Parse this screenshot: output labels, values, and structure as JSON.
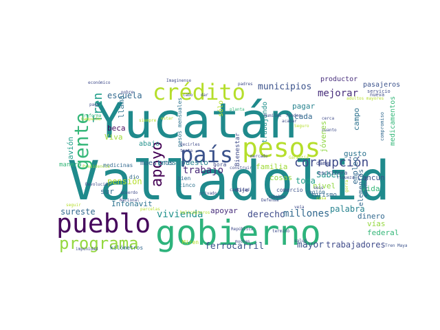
{
  "cloud": {
    "words": [
      {
        "text": "Valladolid",
        "color": "#1f8a8c"
      },
      {
        "text": "Yucatán",
        "color": "#1f8a8c"
      },
      {
        "text": "gobierno",
        "color": "#2eb37c"
      },
      {
        "text": "pueblo",
        "color": "#46085c"
      },
      {
        "text": "pesos",
        "color": "#b5de2b"
      },
      {
        "text": "crédito",
        "color": "#b5de2b"
      },
      {
        "text": "país",
        "color": "#3b528b"
      },
      {
        "text": "gente",
        "color": "#35b779"
      },
      {
        "text": "programa",
        "color": "#95d840"
      },
      {
        "text": "apoyo",
        "color": "#440154"
      },
      {
        "text": "Tren",
        "color": "#1f9e89"
      },
      {
        "text": "corrupción",
        "color": "#3e4a89"
      },
      {
        "text": "mejorar",
        "color": "#472d7b"
      },
      {
        "text": "municipios",
        "color": "#3b528b"
      },
      {
        "text": "escuela",
        "color": "#31688e"
      },
      {
        "text": "pensión",
        "color": "#b5de2b"
      },
      {
        "text": "trabajo",
        "color": "#482878"
      },
      {
        "text": "presupuesto",
        "color": "#26828e"
      },
      {
        "text": "maestros",
        "color": "#31688e"
      },
      {
        "text": "Infonavit",
        "color": "#2c728e"
      },
      {
        "text": "vivienda",
        "color": "#21918c"
      },
      {
        "text": "sureste",
        "color": "#31688e"
      },
      {
        "text": "apoyar",
        "color": "#472d7b"
      },
      {
        "text": "derecho",
        "color": "#3e4a89"
      },
      {
        "text": "millones",
        "color": "#31688e"
      },
      {
        "text": "palabra",
        "color": "#26828e"
      },
      {
        "text": "mayor",
        "color": "#3b528b"
      },
      {
        "text": "trabajadores",
        "color": "#3e4a89"
      },
      {
        "text": "ferrocarril",
        "color": "#3b528b"
      },
      {
        "text": "avión",
        "color": "#1f9e89"
      },
      {
        "text": "beca",
        "color": "#46085c"
      },
      {
        "text": "sur",
        "color": "#31688e"
      },
      {
        "text": "familia",
        "color": "#a0da39"
      },
      {
        "text": "cosas",
        "color": "#90d743"
      },
      {
        "text": "toda",
        "color": "#1f9e89"
      },
      {
        "text": "Saben",
        "color": "#21918c"
      },
      {
        "text": "nivel",
        "color": "#90d743"
      },
      {
        "text": "Cancún",
        "color": "#3b528b"
      },
      {
        "text": "vida",
        "color": "#35b779"
      },
      {
        "text": "empleo",
        "color": "#31688e"
      },
      {
        "text": "gusto",
        "color": "#2c728e"
      },
      {
        "text": "pagar",
        "color": "#26828e"
      },
      {
        "text": "cada",
        "color": "#31688e"
      },
      {
        "text": "jóvenes",
        "color": "#90d743"
      },
      {
        "text": "campo",
        "color": "#2c728e"
      },
      {
        "text": "medicamentos",
        "color": "#35b779"
      },
      {
        "text": "elementos",
        "color": "#31688e"
      },
      {
        "text": "vías",
        "color": "#95d840"
      },
      {
        "text": "federal",
        "color": "#35b779"
      },
      {
        "text": "dinero",
        "color": "#31688e"
      },
      {
        "text": "pasajeros",
        "color": "#3b528b"
      },
      {
        "text": "productor",
        "color": "#472d7b"
      },
      {
        "text": "trabajando",
        "color": "#21918c"
      },
      {
        "text": "Bienestar",
        "color": "#3e4a89"
      },
      {
        "text": "sólo",
        "color": "#b5de2b"
      },
      {
        "text": "llama",
        "color": "#2c728e"
      },
      {
        "text": "Viva",
        "color": "#a0da39"
      },
      {
        "text": "abajo",
        "color": "#21918c"
      },
      {
        "text": "pesos mensuales",
        "color": "#2c728e"
      },
      {
        "text": "medicinas",
        "color": "#31688e"
      },
      {
        "text": "manera",
        "color": "#35b779"
      },
      {
        "text": "dio",
        "color": "#31688e"
      },
      {
        "text": "bien",
        "color": "#31688e"
      },
      {
        "text": "cinco",
        "color": "#2c728e"
      },
      {
        "text": "dije",
        "color": "#3e4a89"
      },
      {
        "text": "hora",
        "color": "#3e4a89"
      },
      {
        "text": "turismo",
        "color": "#31688e"
      },
      {
        "text": "dame",
        "color": "#3e4a89"
      },
      {
        "text": "escritura",
        "color": "#3e4a89"
      },
      {
        "text": "comercio",
        "color": "#3b528b"
      },
      {
        "text": "región",
        "color": "#31688e"
      },
      {
        "text": "Miren",
        "color": "#b5de2b"
      },
      {
        "text": "kilómetros",
        "color": "#31688e"
      },
      {
        "text": "impunidad",
        "color": "#3e4a89"
      },
      {
        "text": "Tren Maya",
        "color": "#3b528b"
      },
      {
        "text": "adultos mayores",
        "color": "#b5de2b"
      },
      {
        "text": "nueva",
        "color": "#3e4a89"
      },
      {
        "text": "servicio",
        "color": "#3e4a89"
      },
      {
        "text": "compromiso",
        "color": "#31688e"
      },
      {
        "text": "Seguro",
        "color": "#b5de2b"
      },
      {
        "text": "riqueza",
        "color": "#3e4a89"
      },
      {
        "text": "acuerdo",
        "color": "#3e4a89"
      },
      {
        "text": "Revolución",
        "color": "#3e4a89"
      },
      {
        "text": "Nacional",
        "color": "#3e4a89"
      },
      {
        "text": "Presidencia",
        "color": "#a0da39"
      },
      {
        "text": "Imaginense",
        "color": "#3e4a89"
      },
      {
        "text": "padres",
        "color": "#3e4a89"
      },
      {
        "text": "económico",
        "color": "#3e4a89"
      },
      {
        "text": "pobre",
        "color": "#3e4a89"
      },
      {
        "text": "cabo",
        "color": "#3e4a89"
      },
      {
        "text": "dar",
        "color": "#3e4a89"
      },
      {
        "text": "planta",
        "color": "#35b779"
      },
      {
        "text": "tanta",
        "color": "#3e4a89"
      },
      {
        "text": "privado",
        "color": "#3e4a89"
      },
      {
        "text": "cantidad",
        "color": "#3e4a89"
      },
      {
        "text": "construir",
        "color": "#3e4a89"
      },
      {
        "text": "mercado",
        "color": "#3e4a89"
      },
      {
        "text": "casa",
        "color": "#b5de2b"
      },
      {
        "text": "Defensa",
        "color": "#3e4a89"
      },
      {
        "text": "seis",
        "color": "#3e4a89"
      },
      {
        "text": "cerca",
        "color": "#3e4a89"
      },
      {
        "text": "fondos",
        "color": "#3e4a89"
      },
      {
        "text": "robaban",
        "color": "#3e4a89"
      },
      {
        "text": "acabar",
        "color": "#3e4a89"
      },
      {
        "text": "gorra",
        "color": "#b5de2b"
      },
      {
        "text": "estudian",
        "color": "#3e4a89"
      },
      {
        "text": "República",
        "color": "#3e4a89"
      },
      {
        "text": "muchas",
        "color": "#3e4a89"
      },
      {
        "text": "terminó",
        "color": "#3e4a89"
      },
      {
        "text": "Garantía",
        "color": "#b5de2b"
      },
      {
        "text": "helicópteros",
        "color": "#b5de2b"
      },
      {
        "text": "parcelas",
        "color": "#b5de2b"
      },
      {
        "text": "seguir",
        "color": "#b5de2b"
      },
      {
        "text": "reforma",
        "color": "#35b779"
      },
      {
        "text": "decirles",
        "color": "#3e4a89"
      },
      {
        "text": "Humilde",
        "color": "#3e4a89"
      },
      {
        "text": "paga",
        "color": "#3e4a89"
      },
      {
        "text": "Campeche",
        "color": "#b5de2b"
      },
      {
        "text": "salud",
        "color": "#3e4a89"
      },
      {
        "text": "veía",
        "color": "#3e4a89"
      },
      {
        "text": "cuanto",
        "color": "#3e4a89"
      },
      {
        "text": "estar",
        "color": "#b5de2b"
      },
      {
        "text": "siempre",
        "color": "#b5de2b"
      },
      {
        "text": "países",
        "color": "#b5de2b"
      },
      {
        "text": "varios",
        "color": "#3e4a89"
      }
    ]
  }
}
